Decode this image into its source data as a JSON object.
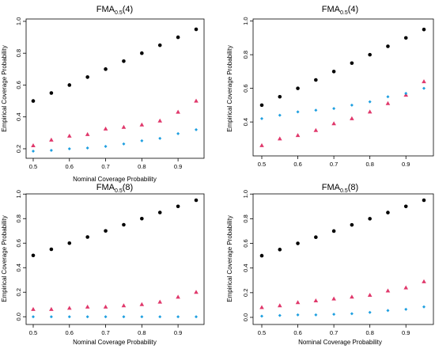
{
  "colors": {
    "black": "#000000",
    "red": "#e0386b",
    "blue": "#1e9fe0"
  },
  "chart_data": [
    {
      "type": "scatter",
      "title_main": "FMA",
      "title_sub": "0.5",
      "title_arg": "(4)",
      "xlabel": "Nominal Coverage Probability",
      "ylabel": "Empirical Coverage Probability",
      "xlim": [
        0.5,
        0.95
      ],
      "ylim": [
        0.18,
        0.97
      ],
      "xticks": [
        0.5,
        0.6,
        0.7,
        0.8,
        0.9
      ],
      "yticks": [
        0.2,
        0.4,
        0.6,
        0.8,
        1.0
      ],
      "x": [
        0.5,
        0.55,
        0.6,
        0.65,
        0.7,
        0.75,
        0.8,
        0.85,
        0.9,
        0.95
      ],
      "series": [
        {
          "marker": "circle",
          "color": "black",
          "values": [
            0.5,
            0.55,
            0.6,
            0.65,
            0.7,
            0.75,
            0.8,
            0.85,
            0.9,
            0.95
          ]
        },
        {
          "marker": "triangle",
          "color": "red",
          "values": [
            0.22,
            0.255,
            0.28,
            0.29,
            0.325,
            0.335,
            0.35,
            0.375,
            0.43,
            0.5
          ]
        },
        {
          "marker": "diamond",
          "color": "blue",
          "values": [
            0.185,
            0.19,
            0.2,
            0.205,
            0.215,
            0.23,
            0.25,
            0.265,
            0.295,
            0.32
          ]
        }
      ]
    },
    {
      "type": "scatter",
      "title_main": "FMA",
      "title_sub": "0.5",
      "title_arg": "(4)",
      "xlabel": "",
      "ylabel": "Empirical Coverage Probability",
      "xlim": [
        0.5,
        0.95
      ],
      "ylim": [
        0.25,
        0.97
      ],
      "xticks": [
        0.5,
        0.6,
        0.7,
        0.8,
        0.9
      ],
      "yticks": [
        0.4,
        0.6,
        0.8,
        1.0
      ],
      "x": [
        0.5,
        0.55,
        0.6,
        0.65,
        0.7,
        0.75,
        0.8,
        0.85,
        0.9,
        0.95
      ],
      "series": [
        {
          "marker": "circle",
          "color": "black",
          "values": [
            0.5,
            0.55,
            0.6,
            0.65,
            0.7,
            0.75,
            0.8,
            0.85,
            0.9,
            0.95
          ]
        },
        {
          "marker": "triangle",
          "color": "red",
          "values": [
            0.26,
            0.3,
            0.32,
            0.35,
            0.39,
            0.42,
            0.46,
            0.51,
            0.56,
            0.64
          ]
        },
        {
          "marker": "diamond",
          "color": "blue",
          "values": [
            0.42,
            0.44,
            0.46,
            0.47,
            0.48,
            0.5,
            0.52,
            0.55,
            0.57,
            0.6
          ]
        }
      ]
    },
    {
      "type": "scatter",
      "title_main": "FMA",
      "title_sub": "0.5",
      "title_arg": "(8)",
      "xlabel": "Nominal Coverage Probability",
      "ylabel": "Empirical Coverage Probability",
      "xlim": [
        0.5,
        0.95
      ],
      "ylim": [
        -0.005,
        0.95
      ],
      "xticks": [
        0.5,
        0.6,
        0.7,
        0.8,
        0.9
      ],
      "yticks": [
        0.0,
        0.2,
        0.4,
        0.6,
        0.8,
        1.0
      ],
      "x": [
        0.5,
        0.55,
        0.6,
        0.65,
        0.7,
        0.75,
        0.8,
        0.85,
        0.9,
        0.95
      ],
      "series": [
        {
          "marker": "circle",
          "color": "black",
          "values": [
            0.5,
            0.55,
            0.6,
            0.65,
            0.7,
            0.75,
            0.8,
            0.85,
            0.9,
            0.95
          ]
        },
        {
          "marker": "triangle",
          "color": "red",
          "values": [
            0.06,
            0.06,
            0.07,
            0.08,
            0.08,
            0.09,
            0.1,
            0.12,
            0.16,
            0.2
          ]
        },
        {
          "marker": "diamond",
          "color": "blue",
          "values": [
            0.0,
            0.0,
            0.0,
            0.0,
            0.0,
            0.0,
            0.0,
            0.0,
            0.0,
            0.0
          ]
        }
      ]
    },
    {
      "type": "scatter",
      "title_main": "FMA",
      "title_sub": "0.5",
      "title_arg": "(8)",
      "xlabel": "Nominal Coverage Probability",
      "ylabel": "Empirical Coverage Probability",
      "xlim": [
        0.5,
        0.95
      ],
      "ylim": [
        0.0,
        0.95
      ],
      "xticks": [
        0.5,
        0.6,
        0.7,
        0.8,
        0.9
      ],
      "yticks": [
        0.0,
        0.2,
        0.4,
        0.6,
        0.8,
        1.0
      ],
      "x": [
        0.5,
        0.55,
        0.6,
        0.65,
        0.7,
        0.75,
        0.8,
        0.85,
        0.9,
        0.95
      ],
      "series": [
        {
          "marker": "circle",
          "color": "black",
          "values": [
            0.5,
            0.55,
            0.6,
            0.65,
            0.7,
            0.75,
            0.8,
            0.85,
            0.9,
            0.95
          ]
        },
        {
          "marker": "triangle",
          "color": "red",
          "values": [
            0.08,
            0.095,
            0.12,
            0.135,
            0.15,
            0.165,
            0.18,
            0.215,
            0.24,
            0.29
          ]
        },
        {
          "marker": "diamond",
          "color": "blue",
          "values": [
            0.01,
            0.015,
            0.02,
            0.02,
            0.025,
            0.03,
            0.04,
            0.055,
            0.065,
            0.085
          ]
        }
      ]
    }
  ]
}
